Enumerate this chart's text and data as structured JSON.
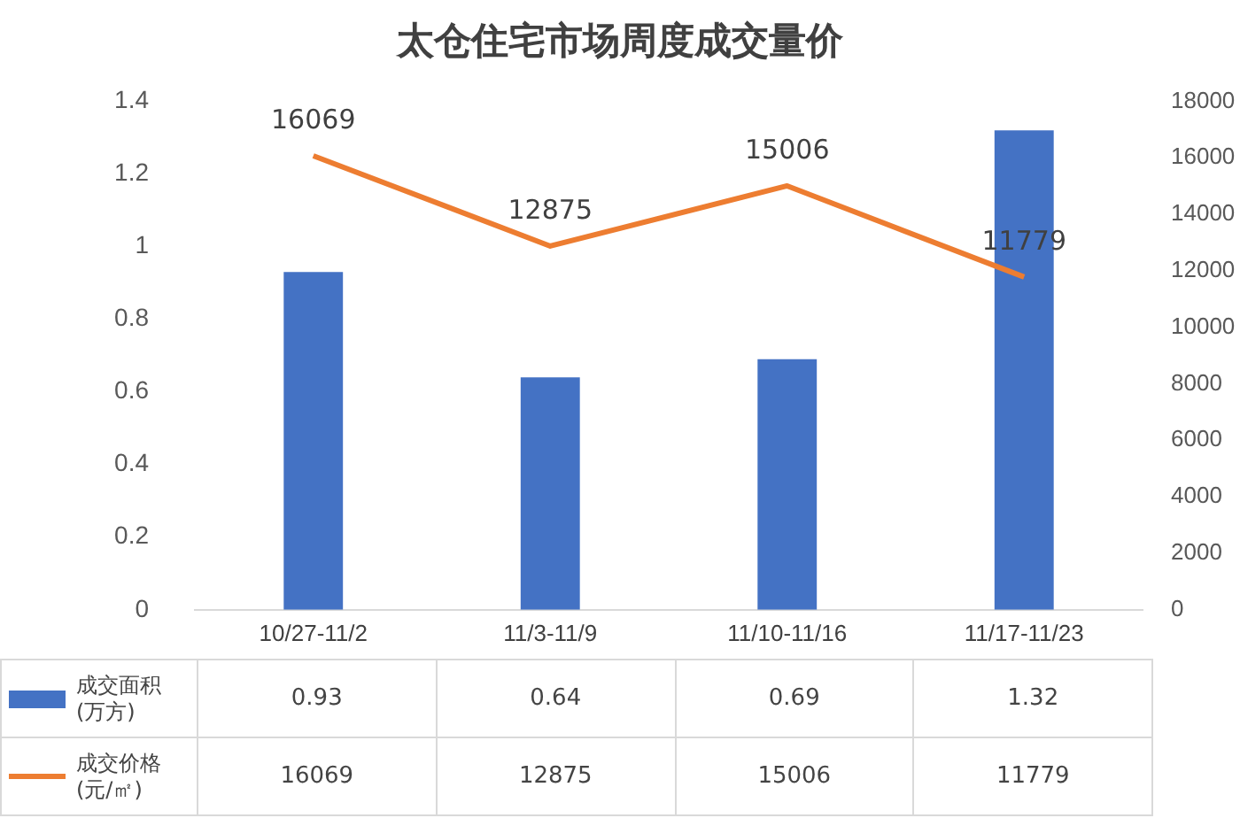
{
  "chart_data": {
    "type": "bar",
    "title": "太仓住宅市场周度成交量价",
    "categories": [
      "10/27-11/2",
      "11/3-11/9",
      "11/10-11/16",
      "11/17-11/23"
    ],
    "series": [
      {
        "name": "成交面积(万方)",
        "color": "#4472c4",
        "values": [
          0.93,
          0.64,
          0.69,
          1.32
        ]
      },
      {
        "name": "成交价格(元/㎡)",
        "type": "line",
        "axis": "y2",
        "color": "#ed7d31",
        "values": [
          16069,
          12875,
          15006,
          11779
        ]
      }
    ],
    "annotations": [
      "16069",
      "12875",
      "15006",
      "11779"
    ],
    "ylim": [
      0,
      1.4
    ],
    "yticks": [
      0,
      0.2,
      0.4,
      0.6,
      0.8,
      1,
      1.2,
      1.4
    ],
    "y2lim": [
      0,
      18000
    ],
    "y2ticks": [
      0,
      2000,
      4000,
      6000,
      8000,
      10000,
      12000,
      14000,
      16000,
      18000
    ],
    "data_labels": true,
    "legend": "bottom",
    "marker": "none"
  }
}
